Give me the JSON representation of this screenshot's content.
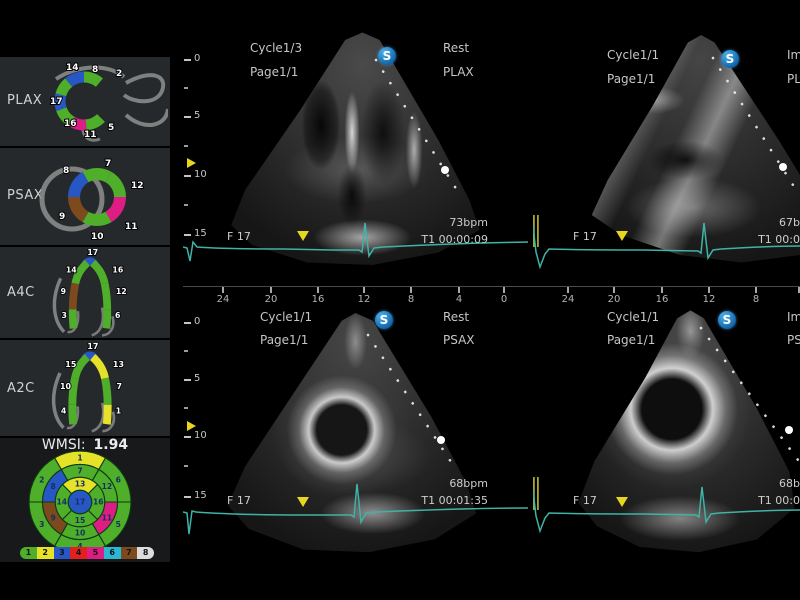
{
  "sidebar": {
    "views": [
      {
        "label": "PLAX",
        "segments": [
          "14",
          "8",
          "2",
          "17",
          "16",
          "11",
          "5"
        ]
      },
      {
        "label": "PSAX",
        "segments": [
          "7",
          "12",
          "11",
          "10",
          "9",
          "8"
        ]
      },
      {
        "label": "A4C",
        "segments": [
          "17",
          "14",
          "9",
          "3",
          "16",
          "12",
          "6"
        ]
      },
      {
        "label": "A2C",
        "segments": [
          "17",
          "15",
          "10",
          "4",
          "13",
          "7",
          "1"
        ]
      }
    ],
    "wmsi": {
      "label": "WMSI:",
      "value": "1.94",
      "legend": [
        {
          "n": "1",
          "color": "#4fae2a"
        },
        {
          "n": "2",
          "color": "#e6e229"
        },
        {
          "n": "3",
          "color": "#2757c4"
        },
        {
          "n": "4",
          "color": "#e32020"
        },
        {
          "n": "5",
          "color": "#dd1d84"
        },
        {
          "n": "6",
          "color": "#29b7d3"
        },
        {
          "n": "7",
          "color": "#7d4a1d"
        },
        {
          "n": "8",
          "color": "#dcdcdc"
        }
      ]
    }
  },
  "segment_colors": {
    "s1": "#e6e229",
    "s2": "#4fae2a",
    "s3": "#4fae2a",
    "s4": "#4fae2a",
    "s5": "#4fae2a",
    "s6": "#4fae2a",
    "s7": "#4fae2a",
    "s8": "#2757c4",
    "s9": "#7d4a1d",
    "s10": "#4fae2a",
    "s11": "#dd1d84",
    "s12": "#4fae2a",
    "s13": "#e6e229",
    "s14": "#4fae2a",
    "s15": "#4fae2a",
    "s16": "#4fae2a",
    "s17": "#2757c4"
  },
  "bullseye_rings": [
    [
      "1",
      "2",
      "3",
      "4",
      "5",
      "6"
    ],
    [
      "7",
      "8",
      "9",
      "10",
      "11",
      "12"
    ],
    [
      "13",
      "14",
      "15",
      "16"
    ],
    [
      "17"
    ]
  ],
  "panels": [
    {
      "name": "top-left",
      "cycle": "Cycle1/3",
      "page": "Page1/1",
      "status": "Rest",
      "view": "PLAX",
      "logo": "S",
      "bpm": "73bpm",
      "timer": "T1 00:00:09",
      "frame": "F 17"
    },
    {
      "name": "top-right",
      "cycle": "Cycle1/1",
      "page": "Page1/1",
      "status": "Im",
      "view": "PLA",
      "logo": "S",
      "bpm": "67b",
      "timer": "T1 00:0",
      "frame": "F 17"
    },
    {
      "name": "bottom-left",
      "cycle": "Cycle1/1",
      "page": "Page1/1",
      "status": "Rest",
      "view": "PSAX",
      "logo": "S",
      "bpm": "68bpm",
      "timer": "T1 00:01:35",
      "frame": "F 17"
    },
    {
      "name": "bottom-right",
      "cycle": "Cycle1/1",
      "page": "Page1/1",
      "status": "Im",
      "view": "PS",
      "logo": "S",
      "bpm": "68b",
      "timer": "T1 00:0",
      "frame": "F 17"
    }
  ],
  "scales": {
    "depth": [
      "0",
      "5",
      "10",
      "15"
    ],
    "ruler_left": [
      "24",
      "20",
      "16",
      "12",
      "8",
      "4",
      "0"
    ],
    "ruler_right": [
      "24",
      "20",
      "16",
      "12",
      "8"
    ]
  },
  "colors": {
    "ecg": "#3fb3a5",
    "marker": "#e8d51e",
    "cursor": "#a8a832"
  }
}
